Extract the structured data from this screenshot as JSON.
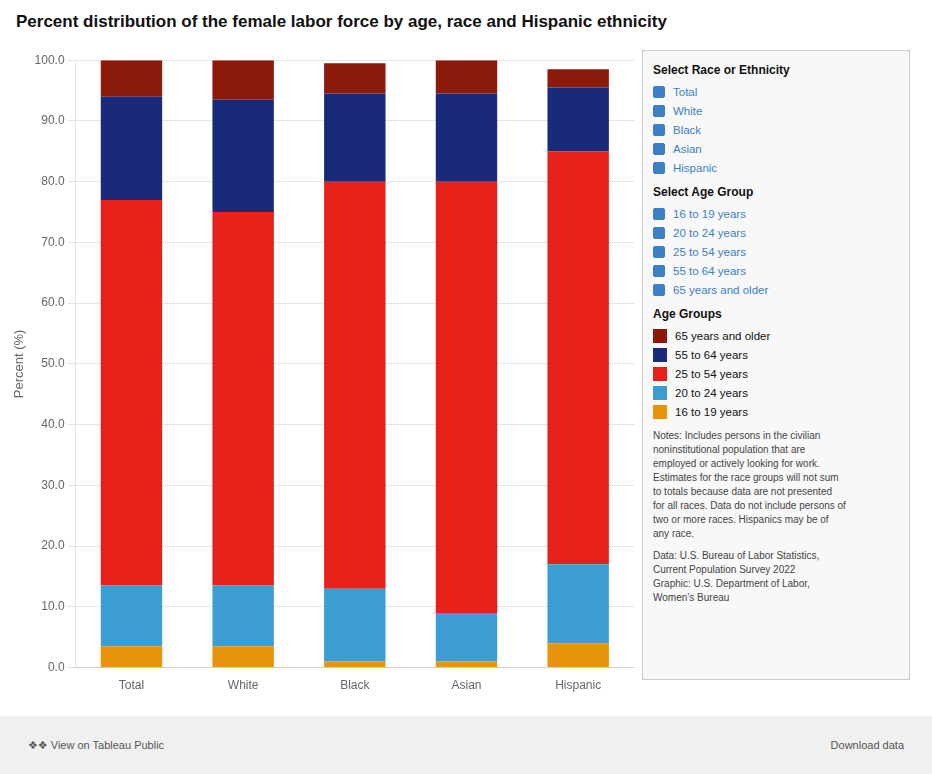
{
  "chart_data": {
    "type": "bar",
    "stacked": true,
    "title": "Percent distribution of the female labor force by age, race and Hispanic ethnicity",
    "y_label": "Percent (%)",
    "categories": [
      "Total",
      "White",
      "Black",
      "Asian",
      "Hispanic"
    ],
    "series": [
      {
        "name": "16 to 19 years",
        "color": "#E8940A",
        "values": [
          3.5,
          3.5,
          1.0,
          1.0,
          4.0
        ]
      },
      {
        "name": "20 to 24 years",
        "color": "#3B9DD2",
        "values": [
          10.0,
          10.0,
          12.0,
          8.0,
          13.0
        ]
      },
      {
        "name": "25 to 54 years",
        "color": "#E8201A",
        "values": [
          63.5,
          61.5,
          67.0,
          71.0,
          68.0
        ]
      },
      {
        "name": "55 to 64 years",
        "color": "#1A2A7A",
        "values": [
          17.0,
          18.5,
          14.5,
          14.5,
          10.5
        ]
      },
      {
        "name": "65 years and older",
        "color": "#8B1A0A",
        "values": [
          6.0,
          6.5,
          5.0,
          5.5,
          3.0
        ]
      }
    ],
    "ylim": [
      0,
      100
    ],
    "yticks": [
      {
        "value": 0,
        "label": "0.0"
      },
      {
        "value": 10,
        "label": "10.0"
      },
      {
        "value": 20,
        "label": "20.0"
      },
      {
        "value": 30,
        "label": "30.0"
      },
      {
        "value": 40,
        "label": "40.0"
      },
      {
        "value": 50,
        "label": "50.0"
      },
      {
        "value": 60,
        "label": "60.0"
      },
      {
        "value": 70,
        "label": "70.0"
      },
      {
        "value": 80,
        "label": "80.0"
      },
      {
        "value": 90,
        "label": "90.0"
      },
      {
        "value": 100,
        "label": "100.0"
      }
    ],
    "grid": true,
    "legend": "right",
    "legend_title": "Age Groups",
    "annotations": [
      {
        "heading": "Select Race or Ethnicity",
        "items": [
          "Total",
          "White",
          "Black",
          "Asian",
          "Hispanic"
        ]
      },
      {
        "heading": "Select Age Group",
        "items": [
          "16 to 19 years",
          "20 to 24 years",
          "25 to 54 years",
          "55 to 64 years",
          "65 years and older"
        ]
      },
      {
        "text": "Notes: Includes persons in the civilian\nnoninstitutional population that are\nemployed or actively looking for work.\nEstimates for the race groups will not sum\nto totals because data are not presented\nfor all races. Data do not include persons of\ntwo or more races. Hispanics may be of\nany race."
      },
      {
        "text": "Data: U.S. Bureau of Labor Statistics,\nCurrent Population Survey 2022\nGraphic: U.S. Department of Labor,\nWomen’s Bureau"
      }
    ],
    "footer": [
      "❖❖ View on Tableau Public",
      "Download data"
    ]
  }
}
